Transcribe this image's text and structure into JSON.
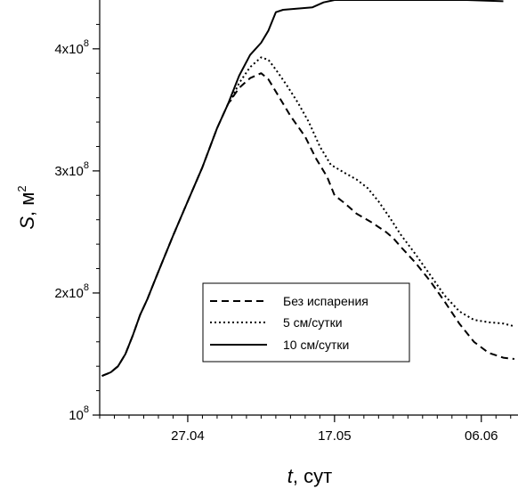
{
  "chart_data": {
    "type": "line",
    "ylabel": {
      "var": "S",
      "rest": ", м",
      "sup": "2"
    },
    "xlabel": {
      "var": "t",
      "rest": ", сут"
    },
    "x_ticks": [
      {
        "day": 0,
        "label": "27.04"
      },
      {
        "day": 20,
        "label": "17.05"
      },
      {
        "day": 40,
        "label": "06.06"
      }
    ],
    "y_ticks": [
      {
        "value": 100000000,
        "base": "10",
        "exp": "8"
      },
      {
        "value": 200000000,
        "base": "2x10",
        "exp": "8"
      },
      {
        "value": 300000000,
        "base": "3x10",
        "exp": "8"
      },
      {
        "value": 400000000,
        "base": "4x10",
        "exp": "8"
      }
    ],
    "xlim_day": [
      -12,
      45
    ],
    "ylim": [
      100000000,
      440000000
    ],
    "legend_position": "bottom-right",
    "series": [
      {
        "name": "Без испарения",
        "dash": "8,5",
        "points": [
          [
            -11.7,
            132000000
          ],
          [
            -10.5,
            135000000
          ],
          [
            -9.5,
            140000000
          ],
          [
            -8.5,
            150000000
          ],
          [
            -7.5,
            165000000
          ],
          [
            -6.5,
            182000000
          ],
          [
            -5.5,
            195000000
          ],
          [
            -4.5,
            210000000
          ],
          [
            -3.5,
            225000000
          ],
          [
            -2,
            247000000
          ],
          [
            0,
            275000000
          ],
          [
            2,
            303000000
          ],
          [
            4,
            335000000
          ],
          [
            5.5,
            355000000
          ],
          [
            7,
            368000000
          ],
          [
            8.5,
            376000000
          ],
          [
            10,
            380000000
          ],
          [
            11,
            375000000
          ],
          [
            12,
            365000000
          ],
          [
            14,
            345000000
          ],
          [
            16,
            328000000
          ],
          [
            17.5,
            310000000
          ],
          [
            19,
            295000000
          ],
          [
            20,
            280000000
          ],
          [
            21.5,
            273000000
          ],
          [
            23,
            265000000
          ],
          [
            25,
            258000000
          ],
          [
            27,
            250000000
          ],
          [
            28,
            245000000
          ],
          [
            29,
            238000000
          ],
          [
            31,
            225000000
          ],
          [
            33,
            210000000
          ],
          [
            35,
            193000000
          ],
          [
            37,
            175000000
          ],
          [
            39,
            160000000
          ],
          [
            41,
            151000000
          ],
          [
            43,
            147000000
          ],
          [
            44.5,
            146000000
          ]
        ]
      },
      {
        "name": "5 см/сутки",
        "dash": "2,3",
        "points": [
          [
            5.8,
            357000000
          ],
          [
            7,
            372000000
          ],
          [
            8.5,
            385000000
          ],
          [
            10,
            393000000
          ],
          [
            11,
            391000000
          ],
          [
            12,
            383000000
          ],
          [
            13.5,
            370000000
          ],
          [
            15,
            356000000
          ],
          [
            16.5,
            340000000
          ],
          [
            18,
            320000000
          ],
          [
            19.5,
            305000000
          ],
          [
            21.5,
            298000000
          ],
          [
            23,
            293000000
          ],
          [
            24.5,
            286000000
          ],
          [
            26,
            275000000
          ],
          [
            27.5,
            262000000
          ],
          [
            29,
            248000000
          ],
          [
            31,
            232000000
          ],
          [
            33,
            215000000
          ],
          [
            35,
            198000000
          ],
          [
            37,
            185000000
          ],
          [
            39,
            178000000
          ],
          [
            41,
            176000000
          ],
          [
            43,
            175000000
          ],
          [
            44.3,
            173000000
          ]
        ]
      },
      {
        "name": "10 см/сутки",
        "dash": "",
        "points": [
          [
            -11.7,
            132000000
          ],
          [
            -10.5,
            135000000
          ],
          [
            -9.5,
            140000000
          ],
          [
            -8.5,
            150000000
          ],
          [
            -7.5,
            165000000
          ],
          [
            -6.5,
            182000000
          ],
          [
            -5.5,
            195000000
          ],
          [
            -4.5,
            210000000
          ],
          [
            -3.5,
            225000000
          ],
          [
            -2,
            247000000
          ],
          [
            0,
            275000000
          ],
          [
            2,
            303000000
          ],
          [
            4,
            335000000
          ],
          [
            5.5,
            355000000
          ],
          [
            7,
            378000000
          ],
          [
            8.5,
            395000000
          ],
          [
            10,
            405000000
          ],
          [
            11,
            415000000
          ],
          [
            12,
            430000000
          ],
          [
            13,
            432000000
          ],
          [
            15,
            433000000
          ],
          [
            17,
            434000000
          ],
          [
            18.5,
            438000000
          ],
          [
            20,
            440000000
          ],
          [
            22,
            440000000
          ],
          [
            30,
            440000000
          ],
          [
            38,
            440000000
          ],
          [
            43,
            439000000
          ]
        ]
      }
    ]
  }
}
